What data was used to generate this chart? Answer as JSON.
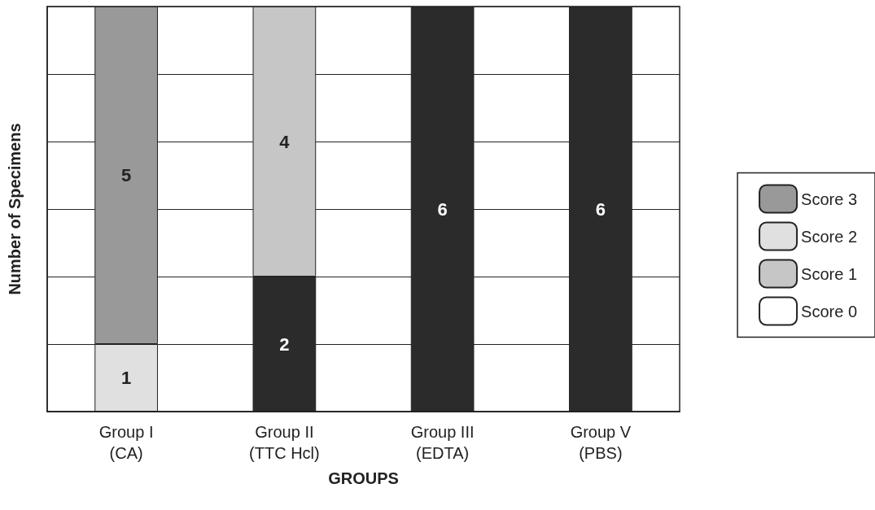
{
  "chart_data": {
    "type": "bar",
    "stacked": true,
    "xlabel": "GROUPS",
    "ylabel": "Number of Specimens",
    "categories": [
      "Group I\n(CA)",
      "Group II\n(TTC Hcl)",
      "Group III\n(EDTA)",
      "Group V\n(PBS)"
    ],
    "series": [
      {
        "name": "Score 0",
        "color": "#ffffff",
        "colors": [
          "#2b2b2b",
          "#2b2b2b",
          "#2b2b2b",
          "#2b2b2b"
        ],
        "values": [
          null,
          2,
          6,
          6
        ]
      },
      {
        "name": "Score 1",
        "color": "#c6c6c6",
        "values": [
          null,
          4,
          null,
          null
        ]
      },
      {
        "name": "Score 2",
        "color": "#e0e0e0",
        "values": [
          1,
          null,
          null,
          null
        ]
      },
      {
        "name": "Score 3",
        "color": "#999999",
        "values": [
          5,
          null,
          null,
          null
        ]
      }
    ],
    "ylim": [
      0,
      6
    ],
    "yticks": [
      {
        "value": 0,
        "label": null
      },
      {
        "value": 1,
        "label": null
      },
      {
        "value": 2,
        "label": null
      },
      {
        "value": 3,
        "label": null
      },
      {
        "value": 4,
        "label": null
      },
      {
        "value": 5,
        "label": null
      },
      {
        "value": 6,
        "label": null
      }
    ],
    "tick_labels": "x",
    "grid": "y",
    "legend": "right",
    "data_labels": true
  }
}
